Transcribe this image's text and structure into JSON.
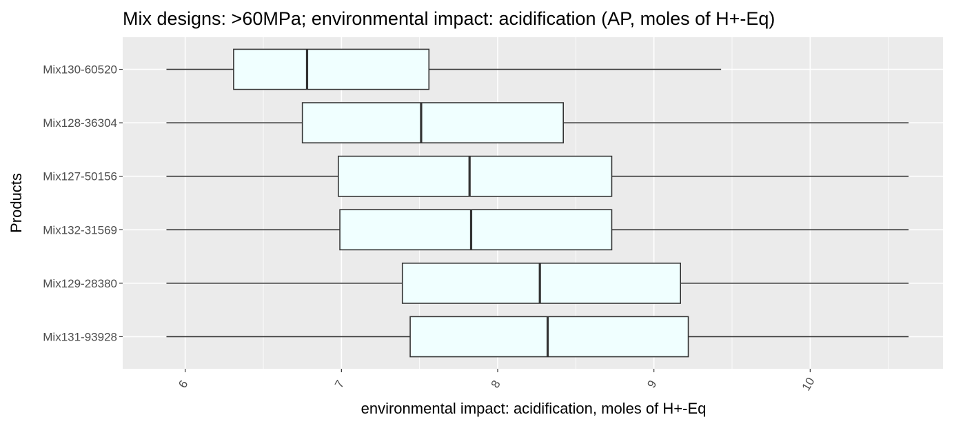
{
  "chart_data": {
    "type": "boxplot",
    "orientation": "horizontal",
    "title": "Mix designs: >60MPa; environmental impact: acidification (AP, moles of H+-Eq)",
    "xlabel": "environmental impact: acidification, moles of H+-Eq",
    "ylabel": "Products",
    "xlim": [
      5.6,
      10.85
    ],
    "x_ticks": [
      6,
      7,
      8,
      9,
      10
    ],
    "x_tick_labels": [
      "6",
      "7",
      "8",
      "9",
      "10"
    ],
    "x_minor_ticks": [
      6.5,
      7.5,
      8.5,
      9.5,
      10.5
    ],
    "grid": true,
    "box_fill": "#F0FFFF",
    "box_stroke": "#333333",
    "panel_background": "#EBEBEB",
    "series": [
      {
        "name": "Mix130-60520",
        "whisker_low": 5.88,
        "q1": 6.31,
        "median": 6.78,
        "q3": 7.56,
        "whisker_high": 9.43
      },
      {
        "name": "Mix128-36304",
        "whisker_low": 5.88,
        "q1": 6.75,
        "median": 7.51,
        "q3": 8.42,
        "whisker_high": 10.63
      },
      {
        "name": "Mix127-50156",
        "whisker_low": 5.88,
        "q1": 6.98,
        "median": 7.82,
        "q3": 8.73,
        "whisker_high": 10.63
      },
      {
        "name": "Mix132-31569",
        "whisker_low": 5.88,
        "q1": 6.99,
        "median": 7.83,
        "q3": 8.73,
        "whisker_high": 10.63
      },
      {
        "name": "Mix129-28380",
        "whisker_low": 5.88,
        "q1": 7.39,
        "median": 8.27,
        "q3": 9.17,
        "whisker_high": 10.63
      },
      {
        "name": "Mix131-93928",
        "whisker_low": 5.88,
        "q1": 7.44,
        "median": 8.32,
        "q3": 9.22,
        "whisker_high": 10.63
      }
    ]
  }
}
